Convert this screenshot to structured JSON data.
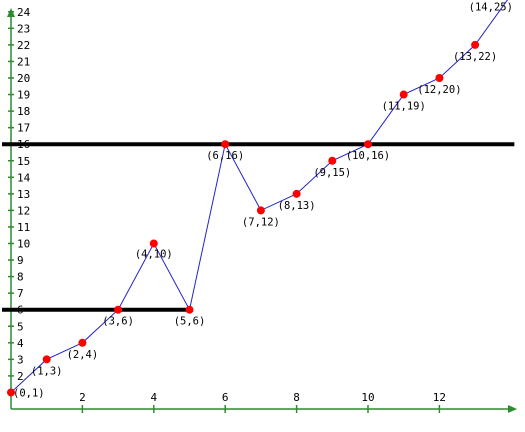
{
  "colors": {
    "axis": "#2e8b2e",
    "series_line": "#2323c8",
    "point": "#ff0000",
    "reference_line": "#000000"
  },
  "chart_data": {
    "type": "line",
    "title": "",
    "xlabel": "",
    "ylabel": "",
    "xlim": [
      0,
      14.1
    ],
    "ylim": [
      0,
      25
    ],
    "grid": false,
    "x_ticks": [
      2,
      4,
      6,
      8,
      10,
      12
    ],
    "y_ticks": [
      2,
      3,
      4,
      5,
      6,
      7,
      8,
      9,
      10,
      11,
      12,
      13,
      14,
      15,
      16,
      17,
      18,
      19,
      20,
      21,
      22,
      23,
      24
    ],
    "series": [
      {
        "points": [
          {
            "x": 0,
            "y": 1,
            "label": "(0,1)"
          },
          {
            "x": 1,
            "y": 3,
            "label": "(1,3)"
          },
          {
            "x": 2,
            "y": 4,
            "label": "(2,4)"
          },
          {
            "x": 3,
            "y": 6,
            "label": "(3,6)"
          },
          {
            "x": 4,
            "y": 10,
            "label": "(4,10)"
          },
          {
            "x": 5,
            "y": 6,
            "label": "(5,6)"
          },
          {
            "x": 6,
            "y": 16,
            "label": "(6,16)"
          },
          {
            "x": 7,
            "y": 12,
            "label": "(7,12)"
          },
          {
            "x": 8,
            "y": 13,
            "label": "(8,13)"
          },
          {
            "x": 9,
            "y": 15,
            "label": "(9,15)"
          },
          {
            "x": 10,
            "y": 16,
            "label": "(10,16)"
          },
          {
            "x": 11,
            "y": 19,
            "label": "(11,19)"
          },
          {
            "x": 12,
            "y": 20,
            "label": "(12,20)"
          },
          {
            "x": 13,
            "y": 22,
            "label": "(13,22)"
          },
          {
            "x": 14,
            "y": 25,
            "label": "(14,25)"
          }
        ]
      }
    ],
    "reference_lines": [
      {
        "x_start": 0,
        "x_end": 5,
        "y": 6
      },
      {
        "x_start": 0,
        "x_end": 14.1,
        "y": 16
      }
    ]
  }
}
